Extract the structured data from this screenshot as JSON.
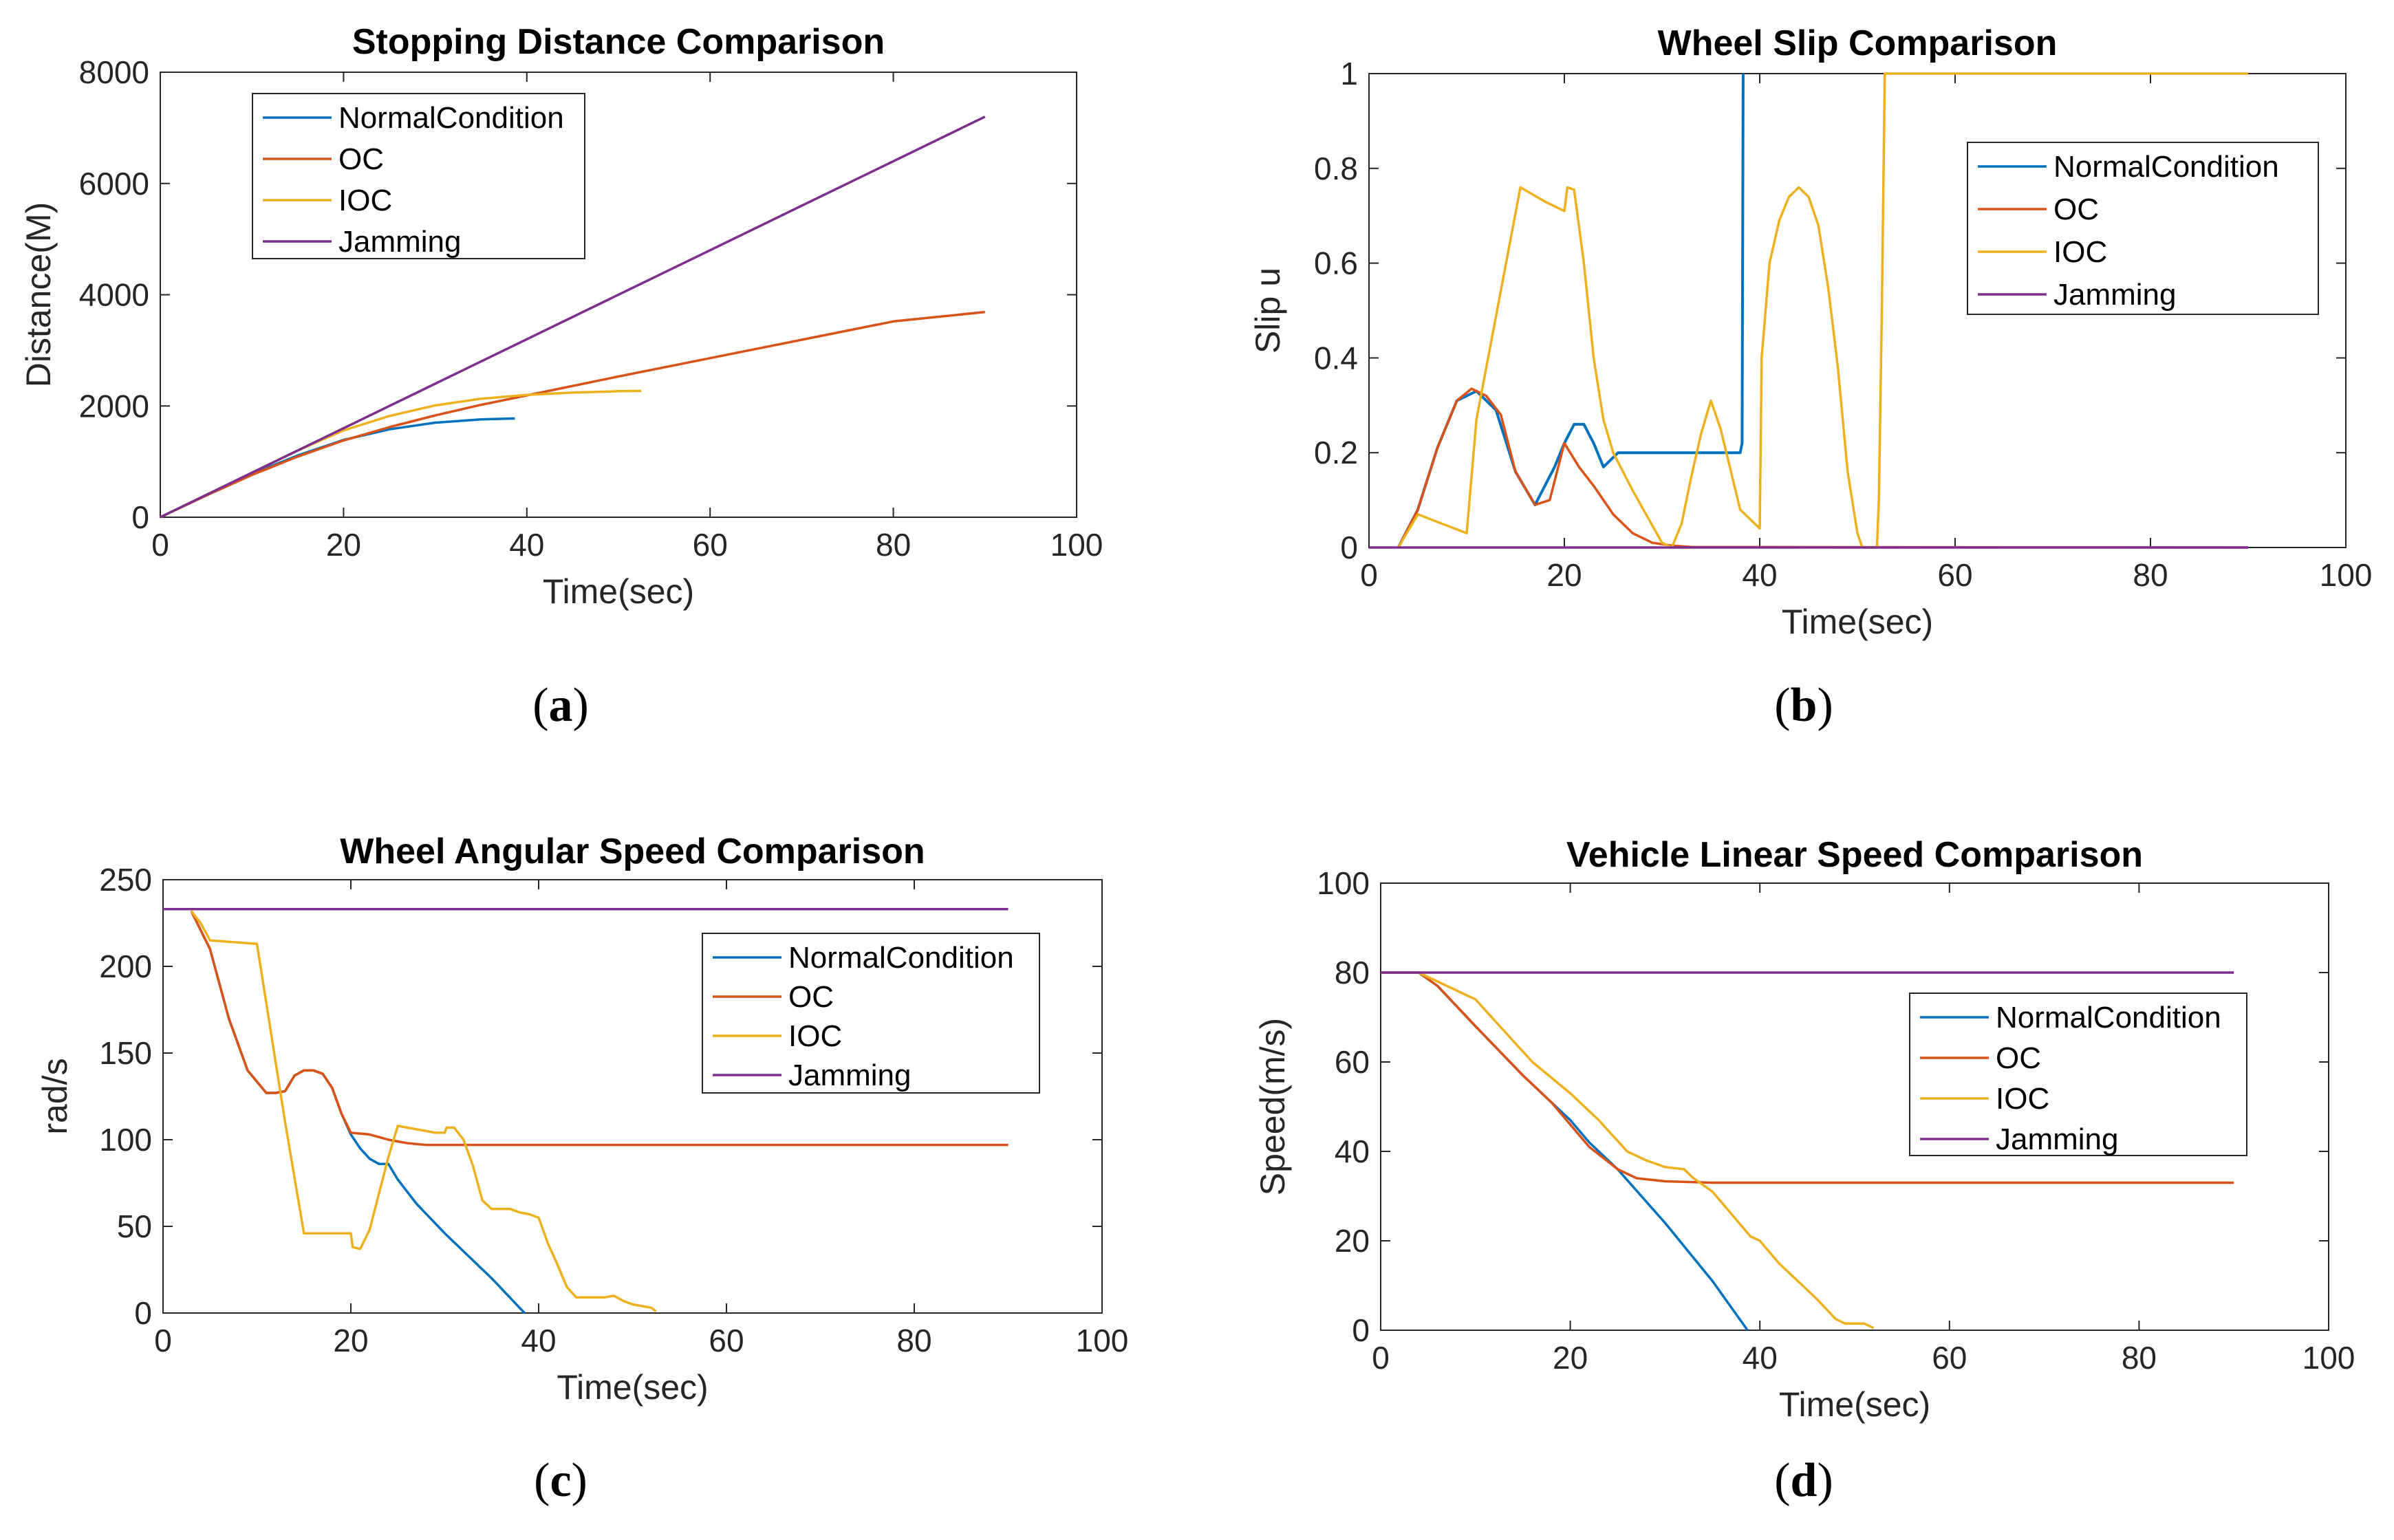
{
  "colors": {
    "NormalCondition": "#0072BD",
    "OC": "#D95319",
    "IOC": "#EDB120",
    "Jamming": "#7E2F8E"
  },
  "legend_order": [
    "NormalCondition",
    "OC",
    "IOC",
    "Jamming"
  ],
  "chart_data": [
    {
      "id": "a",
      "type": "line",
      "title": "Stopping Distance Comparison",
      "xlabel": "Time(sec)",
      "ylabel": "Distance(M)",
      "xlim": [
        0,
        100
      ],
      "ylim": [
        0,
        8000
      ],
      "xticks": [
        0,
        20,
        40,
        60,
        80,
        100
      ],
      "yticks": [
        0,
        2000,
        4000,
        6000,
        8000
      ],
      "legend_position": "top-left",
      "caption": "(a)",
      "series": [
        {
          "name": "NormalCondition",
          "x": [
            0,
            5,
            10,
            15,
            20,
            25,
            30,
            35,
            38.7
          ],
          "y": [
            0,
            400,
            780,
            1110,
            1390,
            1580,
            1700,
            1760,
            1775
          ]
        },
        {
          "name": "OC",
          "x": [
            0,
            5,
            10,
            15,
            20,
            25,
            30,
            35,
            40,
            45,
            50,
            60,
            70,
            80,
            90
          ],
          "y": [
            0,
            390,
            760,
            1090,
            1380,
            1620,
            1830,
            2020,
            2190,
            2360,
            2530,
            2860,
            3190,
            3520,
            3690
          ]
        },
        {
          "name": "IOC",
          "x": [
            0,
            5,
            10,
            15,
            20,
            25,
            30,
            35,
            40,
            45,
            50,
            52.5
          ],
          "y": [
            0,
            400,
            800,
            1200,
            1560,
            1820,
            2010,
            2130,
            2200,
            2240,
            2265,
            2270
          ]
        },
        {
          "name": "Jamming",
          "x": [
            0,
            90
          ],
          "y": [
            0,
            7200
          ]
        }
      ]
    },
    {
      "id": "b",
      "type": "line",
      "title": "Wheel Slip Comparison",
      "xlabel": "Time(sec)",
      "ylabel": "Slip u",
      "xlim": [
        0,
        100
      ],
      "ylim": [
        0,
        1
      ],
      "xticks": [
        0,
        20,
        40,
        60,
        80,
        100
      ],
      "yticks": [
        0,
        0.2,
        0.4,
        0.6,
        0.8,
        1
      ],
      "legend_position": "top-right",
      "caption": "(b)",
      "series": [
        {
          "name": "NormalCondition",
          "x": [
            3,
            5,
            7,
            9,
            11,
            13,
            15,
            17,
            19,
            20,
            21,
            22,
            23,
            24,
            25,
            25.5,
            30,
            35,
            37.8,
            38,
            38.2,
            38.3
          ],
          "y": [
            0,
            0.08,
            0.21,
            0.31,
            0.33,
            0.29,
            0.16,
            0.09,
            0.17,
            0.22,
            0.26,
            0.26,
            0.22,
            0.17,
            0.19,
            0.2,
            0.2,
            0.2,
            0.2,
            0.2,
            0.22,
            1.0
          ]
        },
        {
          "name": "OC",
          "x": [
            3,
            5,
            7,
            9,
            10.5,
            12,
            13.5,
            15,
            17,
            18.5,
            20,
            21.5,
            23,
            25,
            27,
            29,
            31,
            33,
            90
          ],
          "y": [
            0,
            0.08,
            0.21,
            0.31,
            0.335,
            0.32,
            0.28,
            0.16,
            0.09,
            0.1,
            0.22,
            0.17,
            0.13,
            0.07,
            0.03,
            0.01,
            0.004,
            0.001,
            0
          ]
        },
        {
          "name": "IOC",
          "x": [
            3,
            5,
            10,
            11,
            15.5,
            18,
            20,
            20.3,
            21,
            22,
            23,
            24,
            25,
            27,
            30,
            31,
            32,
            33,
            34,
            35,
            36,
            38,
            40,
            40.2,
            41,
            42,
            43,
            44,
            45,
            46,
            47,
            48,
            49,
            50,
            50.5,
            51,
            52,
            52.2,
            52.5,
            52.8,
            90
          ],
          "y": [
            0,
            0.07,
            0.03,
            0.27,
            0.76,
            0.73,
            0.71,
            0.76,
            0.755,
            0.6,
            0.4,
            0.27,
            0.2,
            0.12,
            0.01,
            0,
            0.05,
            0.15,
            0.24,
            0.31,
            0.25,
            0.08,
            0.04,
            0.4,
            0.6,
            0.69,
            0.74,
            0.76,
            0.74,
            0.68,
            0.55,
            0.38,
            0.16,
            0.03,
            0,
            0,
            0,
            0.1,
            0.5,
            1.0,
            1.0
          ]
        },
        {
          "name": "Jamming",
          "x": [
            0,
            90
          ],
          "y": [
            0,
            0
          ]
        }
      ]
    },
    {
      "id": "c",
      "type": "line",
      "title": "Wheel Angular Speed Comparison",
      "xlabel": "Time(sec)",
      "ylabel": "rad/s",
      "xlim": [
        0,
        100
      ],
      "ylim": [
        0,
        250
      ],
      "xticks": [
        0,
        20,
        40,
        60,
        80,
        100
      ],
      "yticks": [
        0,
        50,
        100,
        150,
        200,
        250
      ],
      "legend_position": "top-right",
      "caption": "(c)",
      "series": [
        {
          "name": "NormalCondition",
          "x": [
            3,
            5,
            7,
            9,
            11,
            12,
            13,
            14,
            15,
            16,
            17,
            18,
            19,
            20,
            21,
            22,
            23,
            24,
            25,
            27,
            30,
            35,
            38.5
          ],
          "y": [
            232,
            210,
            170,
            140,
            127,
            127,
            128,
            137,
            140,
            140,
            138,
            130,
            115,
            103,
            95,
            89,
            86,
            86,
            77,
            63,
            46,
            20,
            0
          ]
        },
        {
          "name": "OC",
          "x": [
            3,
            5,
            7,
            9,
            11,
            12,
            13,
            14,
            15,
            16,
            17,
            18,
            19,
            20,
            22,
            24,
            26,
            28,
            30,
            35,
            90
          ],
          "y": [
            232,
            210,
            170,
            140,
            127,
            127,
            128,
            137,
            140,
            140,
            138,
            130,
            115,
            104,
            103,
            100,
            98,
            97,
            97,
            97,
            97
          ]
        },
        {
          "name": "IOC",
          "x": [
            3,
            4,
            5,
            10,
            13,
            15,
            20,
            20.2,
            21,
            22,
            24,
            25,
            26,
            27,
            28,
            29,
            30,
            30.2,
            31,
            32,
            33,
            34,
            35,
            36,
            37,
            38,
            39,
            40,
            41,
            42,
            43,
            44,
            45,
            47,
            48,
            49,
            50,
            51,
            52,
            52.5
          ],
          "y": [
            232,
            225,
            215,
            213,
            110,
            46,
            46,
            38,
            37,
            48,
            90,
            108,
            107,
            106,
            105,
            104,
            104,
            107,
            107,
            100,
            85,
            65,
            60,
            60,
            60,
            58,
            57,
            55,
            40,
            28,
            15,
            9,
            9,
            9,
            10,
            7,
            5,
            4,
            3,
            1
          ]
        },
        {
          "name": "Jamming",
          "x": [
            0,
            90
          ],
          "y": [
            233,
            233
          ]
        }
      ]
    },
    {
      "id": "d",
      "type": "line",
      "title": "Vehicle Linear Speed Comparison",
      "xlabel": "Time(sec)",
      "ylabel": "Speed(m/s)",
      "xlim": [
        0,
        100
      ],
      "ylim": [
        0,
        100
      ],
      "xticks": [
        0,
        20,
        40,
        60,
        80,
        100
      ],
      "yticks": [
        0,
        20,
        40,
        60,
        80,
        100
      ],
      "legend_position": "top-right",
      "caption": "(d)",
      "series": [
        {
          "name": "NormalCondition",
          "x": [
            0,
            4,
            6,
            10,
            15,
            18,
            20,
            22,
            25,
            30,
            35,
            38.7
          ],
          "y": [
            80,
            80,
            77,
            68,
            57,
            51,
            47,
            42,
            36,
            24,
            11,
            0
          ]
        },
        {
          "name": "OC",
          "x": [
            0,
            4,
            6,
            10,
            15,
            18,
            20,
            22,
            25,
            27,
            30,
            35,
            40,
            50,
            90
          ],
          "y": [
            80,
            80,
            77,
            68,
            57,
            51,
            46,
            41,
            36,
            34,
            33.3,
            33,
            33,
            33,
            33
          ]
        },
        {
          "name": "IOC",
          "x": [
            0,
            4,
            6,
            8,
            10,
            13,
            16,
            20,
            23,
            26,
            28,
            30,
            32,
            33,
            35,
            37,
            39,
            40,
            42,
            44,
            46,
            48,
            49,
            50,
            51,
            52
          ],
          "y": [
            80,
            80,
            78,
            76,
            74,
            67,
            60,
            53,
            47,
            40,
            38,
            36.5,
            36,
            34,
            31,
            26,
            21,
            20,
            15,
            11,
            7,
            2.5,
            1.5,
            1.5,
            1.5,
            0.5
          ]
        },
        {
          "name": "Jamming",
          "x": [
            0,
            90
          ],
          "y": [
            80,
            80
          ]
        }
      ]
    }
  ]
}
